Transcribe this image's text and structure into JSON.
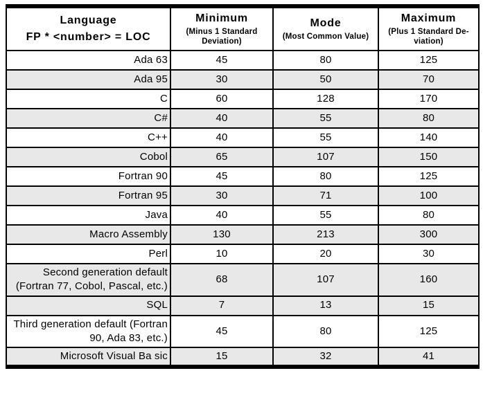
{
  "colors": {
    "shaded_row": "#e8e8e8",
    "plain_row": "#ffffff",
    "border": "#000000",
    "text": "#000000"
  },
  "table": {
    "columns": [
      {
        "title": "Language",
        "subtitle": "FP * <number> = LOC"
      },
      {
        "title": "Minimum",
        "subtitle": "(Minus 1 Standard Deviation)"
      },
      {
        "title": "Mode",
        "subtitle": "(Most Common Value)"
      },
      {
        "title": "Maximum",
        "subtitle": "(Plus 1 Standard De-viation)"
      }
    ],
    "rows": [
      {
        "language": "Ada 63",
        "minimum": "45",
        "mode": "80",
        "maximum": "125",
        "shaded": false
      },
      {
        "language": "Ada 95",
        "minimum": "30",
        "mode": "50",
        "maximum": "70",
        "shaded": true
      },
      {
        "language": "C",
        "minimum": "60",
        "mode": "128",
        "maximum": "170",
        "shaded": false
      },
      {
        "language": "C#",
        "minimum": "40",
        "mode": "55",
        "maximum": "80",
        "shaded": true
      },
      {
        "language": "C++",
        "minimum": "40",
        "mode": "55",
        "maximum": "140",
        "shaded": false
      },
      {
        "language": "Cobol",
        "minimum": "65",
        "mode": "107",
        "maximum": "150",
        "shaded": true
      },
      {
        "language": "Fortran 90",
        "minimum": "45",
        "mode": "80",
        "maximum": "125",
        "shaded": false
      },
      {
        "language": "Fortran 95",
        "minimum": "30",
        "mode": "71",
        "maximum": "100",
        "shaded": true
      },
      {
        "language": "Java",
        "minimum": "40",
        "mode": "55",
        "maximum": "80",
        "shaded": false
      },
      {
        "language": "Macro Assembly",
        "minimum": "130",
        "mode": "213",
        "maximum": "300",
        "shaded": true
      },
      {
        "language": "Perl",
        "minimum": "10",
        "mode": "20",
        "maximum": "30",
        "shaded": false
      },
      {
        "language": "Second generation default (Fortran 77, Cobol, Pascal, etc.)",
        "minimum": "68",
        "mode": "107",
        "maximum": "160",
        "shaded": true
      },
      {
        "language": "SQL",
        "minimum": "7",
        "mode": "13",
        "maximum": "15",
        "shaded": true
      },
      {
        "language": "Third generation default (Fortran 90, Ada 83, etc.)",
        "minimum": "45",
        "mode": "80",
        "maximum": "125",
        "shaded": false
      },
      {
        "language": "Microsoft Visual Ba sic",
        "minimum": "15",
        "mode": "32",
        "maximum": "41",
        "shaded": true
      }
    ]
  }
}
